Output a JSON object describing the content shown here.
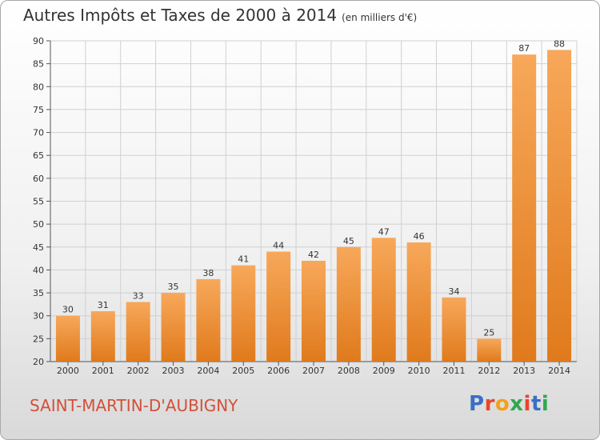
{
  "title": "Autres Impôts et Taxes de 2000 à 2014",
  "unit_label": "(en milliers d'€)",
  "commune": "SAINT-MARTIN-D'AUBIGNY",
  "brand": "Proxiti",
  "colors": {
    "bar_light": "#f7a85a",
    "bar_dark": "#e07a1c",
    "commune_text": "#d2503a",
    "grid": "#d0d0d0"
  },
  "chart_data": {
    "type": "bar",
    "title": "Autres Impôts et Taxes de 2000 à 2014",
    "subtitle": "(en milliers d'€)",
    "categories": [
      "2000",
      "2001",
      "2002",
      "2003",
      "2004",
      "2005",
      "2006",
      "2007",
      "2008",
      "2009",
      "2010",
      "2011",
      "2012",
      "2013",
      "2014"
    ],
    "values": [
      30,
      31,
      33,
      35,
      38,
      41,
      44,
      42,
      45,
      47,
      46,
      34,
      25,
      87,
      88
    ],
    "ylim": [
      20,
      90
    ],
    "yticks": [
      20,
      25,
      30,
      35,
      40,
      45,
      50,
      55,
      60,
      65,
      70,
      75,
      80,
      85,
      90
    ],
    "grid": true
  }
}
